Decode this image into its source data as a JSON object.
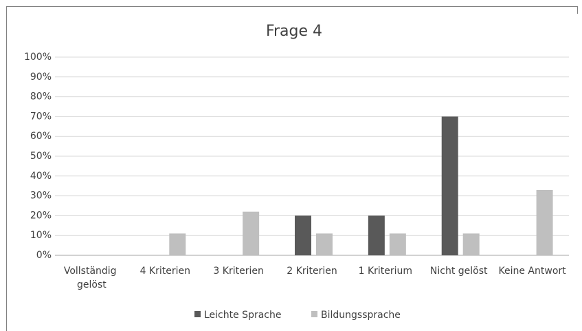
{
  "chart_data": {
    "type": "bar",
    "title": "Frage 4",
    "categories": [
      "Vollständig gelöst",
      "4 Kriterien",
      "3 Kriterien",
      "2 Kriterien",
      "1 Kriterium",
      "Nicht gelöst",
      "Keine Antwort"
    ],
    "series": [
      {
        "name": "Leichte Sprache",
        "color": "#595959",
        "values": [
          0,
          0,
          0,
          20,
          20,
          70,
          0
        ]
      },
      {
        "name": "Bildungssprache",
        "color": "#bfbfbf",
        "values": [
          0,
          11,
          22,
          11,
          11,
          11,
          33
        ]
      }
    ],
    "ylim": [
      0,
      100
    ],
    "yticks": [
      {
        "value": 0,
        "label": "0%"
      },
      {
        "value": 10,
        "label": "10%"
      },
      {
        "value": 20,
        "label": "20%"
      },
      {
        "value": 30,
        "label": "30%"
      },
      {
        "value": 40,
        "label": "40%"
      },
      {
        "value": 50,
        "label": "50%"
      },
      {
        "value": 60,
        "label": "60%"
      },
      {
        "value": 70,
        "label": "70%"
      },
      {
        "value": 80,
        "label": "80%"
      },
      {
        "value": 90,
        "label": "90%"
      },
      {
        "value": 100,
        "label": "100%"
      }
    ],
    "grid": true,
    "legend": "bottom"
  }
}
